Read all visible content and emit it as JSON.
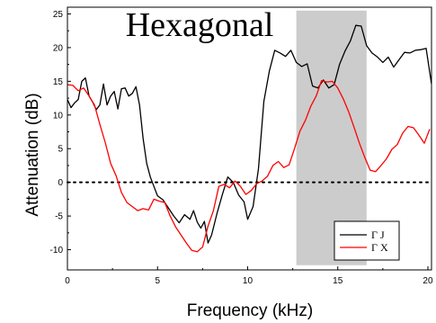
{
  "chart_data": {
    "type": "line",
    "title": "Hexagonal",
    "xlabel": "Frequency (kHz)",
    "ylabel": "Attenuation (dB)",
    "xlim": [
      0,
      20.2
    ],
    "ylim": [
      -13,
      26
    ],
    "xticks": [
      0,
      5,
      10,
      15,
      20
    ],
    "xtick_labels": [
      "0",
      "5",
      "10",
      "15",
      "20"
    ],
    "yticks": [
      -10,
      -5,
      0,
      5,
      10,
      15,
      20,
      25
    ],
    "ytick_labels": [
      "-10",
      "-5",
      "0",
      "5",
      "10",
      "15",
      "20",
      "25"
    ],
    "grid": false,
    "legend_position": "bottom-right",
    "shaded_band": {
      "x": [
        12.7,
        16.6
      ],
      "y": [
        -12.3,
        25.5
      ],
      "color": "#cccccc"
    },
    "zero_line": {
      "y": 0,
      "style": "dotted",
      "color": "#000000"
    },
    "series": [
      {
        "name": "Γ J",
        "color": "#000000",
        "x": [
          0,
          0.2,
          0.4,
          0.6,
          0.8,
          1.0,
          1.2,
          1.4,
          1.6,
          1.8,
          2.0,
          2.2,
          2.4,
          2.6,
          2.8,
          3.0,
          3.2,
          3.4,
          3.6,
          3.8,
          4.0,
          4.2,
          4.4,
          4.6,
          4.8,
          5.0,
          5.3,
          5.6,
          5.9,
          6.2,
          6.5,
          6.8,
          7.0,
          7.2,
          7.4,
          7.6,
          7.8,
          8.0,
          8.3,
          8.6,
          8.9,
          9.2,
          9.5,
          9.8,
          10.0,
          10.3,
          10.6,
          10.9,
          11.2,
          11.5,
          11.8,
          12.1,
          12.4,
          12.7,
          13.0,
          13.3,
          13.6,
          13.9,
          14.2,
          14.5,
          14.8,
          15.1,
          15.4,
          15.7,
          16.0,
          16.3,
          16.6,
          16.9,
          17.2,
          17.5,
          17.8,
          18.1,
          18.4,
          18.7,
          19.0,
          19.3,
          19.6,
          19.9,
          20.2
        ],
        "y": [
          12.3,
          11.1,
          11.8,
          12.3,
          15.0,
          15.5,
          12.8,
          11.9,
          10.8,
          11.5,
          14.6,
          11.5,
          12.8,
          13.5,
          10.9,
          13.9,
          14.0,
          12.8,
          13.2,
          14.2,
          11.5,
          6.5,
          2.8,
          0.8,
          -0.6,
          -2.0,
          -2.6,
          -3.8,
          -5.0,
          -6.0,
          -4.8,
          -5.5,
          -4.2,
          -5.9,
          -6.8,
          -5.8,
          -9.0,
          -7.8,
          -4.6,
          -1.8,
          0.8,
          0.0,
          -1.9,
          -2.9,
          -5.5,
          -3.6,
          2.0,
          12.0,
          16.5,
          19.6,
          19.2,
          18.7,
          19.6,
          17.8,
          17.2,
          17.6,
          14.3,
          14.0,
          15.2,
          14.0,
          14.5,
          17.5,
          19.5,
          21.0,
          23.3,
          23.2,
          20.3,
          19.2,
          18.6,
          17.8,
          18.6,
          17.1,
          18.2,
          19.3,
          19.2,
          19.6,
          19.7,
          19.9,
          14.6
        ]
      },
      {
        "name": "Γ X",
        "color": "#ff0000",
        "x": [
          0,
          0.3,
          0.6,
          0.9,
          1.2,
          1.5,
          1.8,
          2.1,
          2.4,
          2.7,
          3.0,
          3.3,
          3.6,
          3.9,
          4.2,
          4.5,
          4.8,
          5.1,
          5.4,
          5.7,
          6.0,
          6.3,
          6.6,
          6.9,
          7.2,
          7.5,
          7.8,
          8.1,
          8.4,
          8.7,
          9.0,
          9.3,
          9.6,
          9.9,
          10.2,
          10.5,
          10.8,
          11.1,
          11.4,
          11.7,
          12.0,
          12.3,
          12.6,
          12.9,
          13.2,
          13.5,
          13.8,
          14.1,
          14.4,
          14.7,
          15.0,
          15.3,
          15.6,
          15.9,
          16.2,
          16.5,
          16.8,
          17.1,
          17.4,
          17.7,
          18.0,
          18.3,
          18.6,
          18.9,
          19.2,
          19.5,
          19.8,
          20.1
        ],
        "y": [
          14.5,
          14.4,
          13.6,
          14.0,
          12.8,
          11.5,
          8.6,
          5.9,
          2.8,
          1.0,
          -1.5,
          -3.0,
          -3.6,
          -4.2,
          -3.9,
          -4.1,
          -2.5,
          -2.8,
          -3.0,
          -5.0,
          -6.6,
          -7.8,
          -9.0,
          -10.1,
          -10.3,
          -9.6,
          -6.5,
          -4.2,
          -0.6,
          -0.3,
          -0.8,
          0.2,
          -0.6,
          -1.8,
          -1.2,
          -0.2,
          0.2,
          0.9,
          2.5,
          3.1,
          2.2,
          2.6,
          5.0,
          7.6,
          9.2,
          11.3,
          12.8,
          15.1,
          14.9,
          15.0,
          14.0,
          12.4,
          10.5,
          8.2,
          5.8,
          3.7,
          1.8,
          1.6,
          2.5,
          3.5,
          4.9,
          5.6,
          7.3,
          8.3,
          8.1,
          7.0,
          5.8,
          7.9
        ]
      }
    ]
  }
}
